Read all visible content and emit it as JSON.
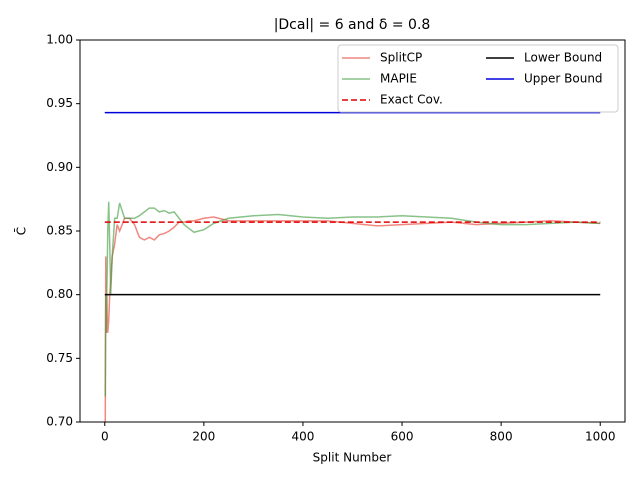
{
  "chart_data": {
    "type": "line",
    "title": "|Dcal| = 6 and δ = 0.8",
    "xlabel": "Split Number",
    "ylabel": "C̄",
    "xlim": [
      -50,
      1050
    ],
    "ylim": [
      0.7,
      1.0
    ],
    "xticks": [
      0,
      200,
      400,
      600,
      800,
      1000
    ],
    "yticks": [
      {
        "value": 0.7,
        "label": "0.70"
      },
      {
        "value": 0.75,
        "label": "0.75"
      },
      {
        "value": 0.8,
        "label": "0.80"
      },
      {
        "value": 0.85,
        "label": "0.85"
      },
      {
        "value": 0.9,
        "label": "0.90"
      },
      {
        "value": 0.95,
        "label": "0.95"
      },
      {
        "value": 1.0,
        "label": "1.00"
      }
    ],
    "legend": "upper right",
    "series": [
      {
        "name": "SplitCP",
        "color": "#e8372a",
        "alpha": 0.6,
        "linestyle": "solid",
        "x": [
          1,
          2,
          3,
          4,
          5,
          6,
          8,
          10,
          12,
          15,
          20,
          25,
          30,
          40,
          50,
          60,
          70,
          80,
          90,
          100,
          110,
          120,
          130,
          140,
          150,
          160,
          170,
          180,
          200,
          220,
          250,
          300,
          350,
          400,
          450,
          500,
          550,
          600,
          650,
          700,
          750,
          800,
          850,
          900,
          950,
          1000
        ],
        "values": [
          0.7,
          0.83,
          0.77,
          0.8,
          0.78,
          0.77,
          0.78,
          0.8,
          0.81,
          0.83,
          0.84,
          0.855,
          0.85,
          0.86,
          0.86,
          0.855,
          0.845,
          0.843,
          0.845,
          0.843,
          0.847,
          0.848,
          0.85,
          0.853,
          0.857,
          0.857,
          0.858,
          0.858,
          0.86,
          0.861,
          0.858,
          0.858,
          0.858,
          0.858,
          0.858,
          0.856,
          0.854,
          0.855,
          0.856,
          0.857,
          0.855,
          0.856,
          0.857,
          0.858,
          0.857,
          0.856
        ]
      },
      {
        "name": "MAPIE",
        "color": "#3a9a3a",
        "alpha": 0.6,
        "linestyle": "solid",
        "x": [
          1,
          2,
          3,
          4,
          5,
          6,
          8,
          10,
          12,
          15,
          20,
          25,
          30,
          40,
          50,
          60,
          70,
          80,
          90,
          100,
          110,
          120,
          130,
          140,
          150,
          160,
          170,
          180,
          200,
          220,
          250,
          300,
          350,
          400,
          450,
          500,
          550,
          600,
          650,
          700,
          750,
          800,
          850,
          900,
          950,
          1000
        ],
        "values": [
          0.72,
          0.8,
          0.77,
          0.8,
          0.82,
          0.85,
          0.873,
          0.84,
          0.8,
          0.83,
          0.86,
          0.86,
          0.872,
          0.86,
          0.86,
          0.86,
          0.862,
          0.865,
          0.868,
          0.868,
          0.865,
          0.866,
          0.864,
          0.865,
          0.86,
          0.855,
          0.852,
          0.849,
          0.851,
          0.856,
          0.86,
          0.862,
          0.863,
          0.861,
          0.86,
          0.861,
          0.861,
          0.862,
          0.861,
          0.86,
          0.857,
          0.855,
          0.855,
          0.856,
          0.857,
          0.856
        ]
      },
      {
        "name": "Exact Cov.",
        "color": "#e00000",
        "alpha": 1,
        "linestyle": "dashed",
        "x": [
          0,
          1000
        ],
        "values": [
          0.857,
          0.857
        ]
      },
      {
        "name": "Lower Bound",
        "color": "#000000",
        "alpha": 1,
        "linestyle": "solid",
        "x": [
          0,
          1000
        ],
        "values": [
          0.8,
          0.8
        ]
      },
      {
        "name": "Upper Bound",
        "color": "#0000dd",
        "alpha": 1,
        "linestyle": "solid",
        "x": [
          0,
          1000
        ],
        "values": [
          0.943,
          0.943
        ]
      }
    ]
  }
}
